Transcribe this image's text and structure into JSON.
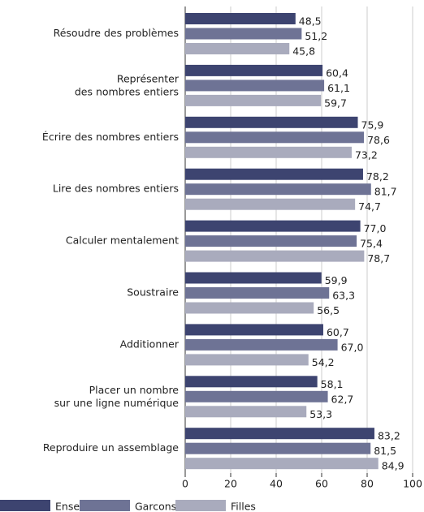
{
  "chart_data": {
    "type": "hbar",
    "categories": [
      "Résoudre des problèmes",
      "Représenter\ndes nombres entiers",
      "Écrire des nombres entiers",
      "Lire des nombres entiers",
      "Calculer mentalement",
      "Soustraire",
      "Additionner",
      "Placer un nombre\nsur une ligne numérique",
      "Reproduire un assemblage"
    ],
    "series": [
      {
        "name": "Ensemble",
        "color": "#3d4470",
        "values": [
          48.5,
          60.4,
          75.9,
          78.2,
          77.0,
          59.9,
          60.7,
          58.1,
          83.2
        ],
        "value_labels": [
          "48,5",
          "60,4",
          "75,9",
          "78,2",
          "77,0",
          "59,9",
          "60,7",
          "58,1",
          "83,2"
        ]
      },
      {
        "name": "Garcons",
        "color": "#6e7395",
        "values": [
          51.2,
          61.1,
          78.6,
          81.7,
          75.4,
          63.3,
          67.0,
          62.7,
          81.5
        ],
        "value_labels": [
          "51,2",
          "61,1",
          "78,6",
          "81,7",
          "75,4",
          "63,3",
          "67,0",
          "62,7",
          "81,5"
        ]
      },
      {
        "name": "Filles",
        "color": "#a9abbd",
        "values": [
          45.8,
          59.7,
          73.2,
          74.7,
          78.7,
          56.5,
          54.2,
          53.3,
          84.9
        ],
        "value_labels": [
          "45,8",
          "59,7",
          "73,2",
          "74,7",
          "78,7",
          "56,5",
          "54,2",
          "53,3",
          "84,9"
        ]
      }
    ],
    "xlim": [
      0,
      100
    ],
    "xticks": [
      0,
      20,
      40,
      60,
      80,
      100
    ],
    "grid": true,
    "legend": "bottom"
  }
}
